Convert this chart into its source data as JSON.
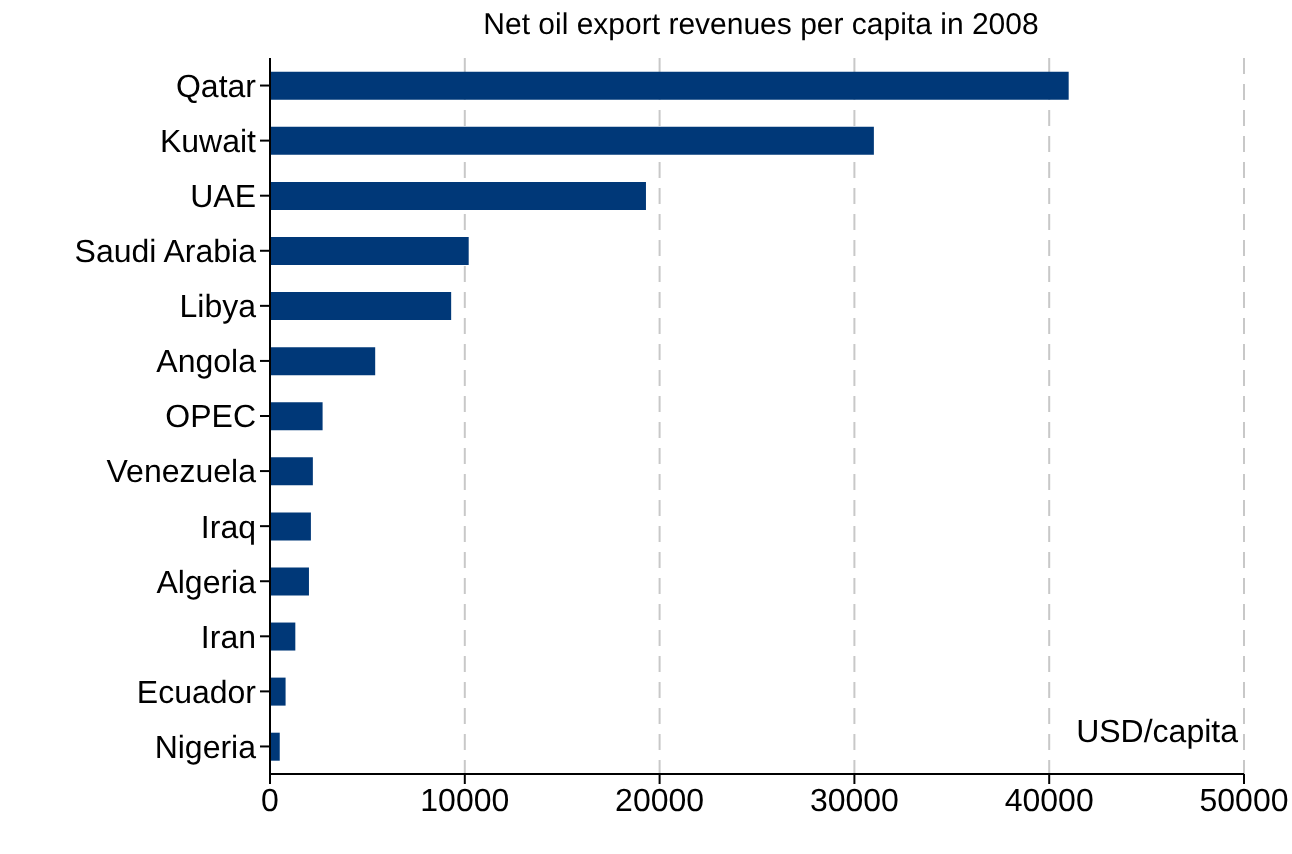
{
  "chart_data": {
    "type": "bar",
    "orientation": "horizontal",
    "title": "Net oil export revenues per capita in 2008",
    "xlabel": "USD/capita",
    "categories": [
      "Qatar",
      "Kuwait",
      "UAE",
      "Saudi Arabia",
      "Libya",
      "Angola",
      "OPEC",
      "Venezuela",
      "Iraq",
      "Algeria",
      "Iran",
      "Ecuador",
      "Nigeria"
    ],
    "values": [
      41000,
      31000,
      19300,
      10200,
      9300,
      5400,
      2700,
      2200,
      2100,
      2000,
      1300,
      800,
      500
    ],
    "color": "#003878",
    "xlim": [
      0,
      50000
    ],
    "xticks": [
      0,
      10000,
      20000,
      30000,
      40000,
      50000
    ],
    "grid": "x"
  }
}
